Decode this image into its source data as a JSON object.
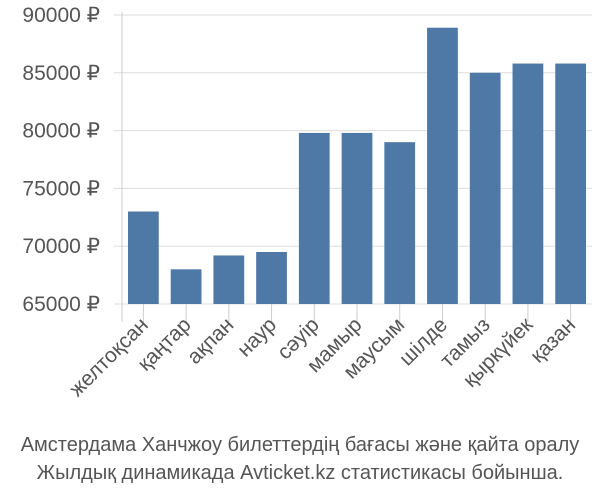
{
  "chart_data": {
    "type": "bar",
    "categories": [
      "желтоқсан",
      "қаңтар",
      "ақпан",
      "наур",
      "сәуір",
      "мамыр",
      "маусым",
      "шілде",
      "тамыз",
      "қыркүйек",
      "қазан"
    ],
    "values": [
      73000,
      68000,
      69200,
      69500,
      79800,
      79800,
      79000,
      88900,
      85000,
      85800,
      85800
    ],
    "ylim": [
      65000,
      90000
    ],
    "yticks": [
      65000,
      70000,
      75000,
      80000,
      85000,
      90000
    ],
    "ytick_labels": [
      "65000 ₽",
      "70000 ₽",
      "75000 ₽",
      "80000 ₽",
      "85000 ₽",
      "90000 ₽"
    ],
    "grid": "horizontal",
    "bar_color": "#4e79a7",
    "title": "",
    "xlabel": "",
    "ylabel": ""
  },
  "caption": {
    "line1": "Амстердама Ханчжоу билеттердің бағасы және қайта оралу",
    "line2": "Жылдық динамикада Avticket.kz статистикасы бойынша."
  }
}
